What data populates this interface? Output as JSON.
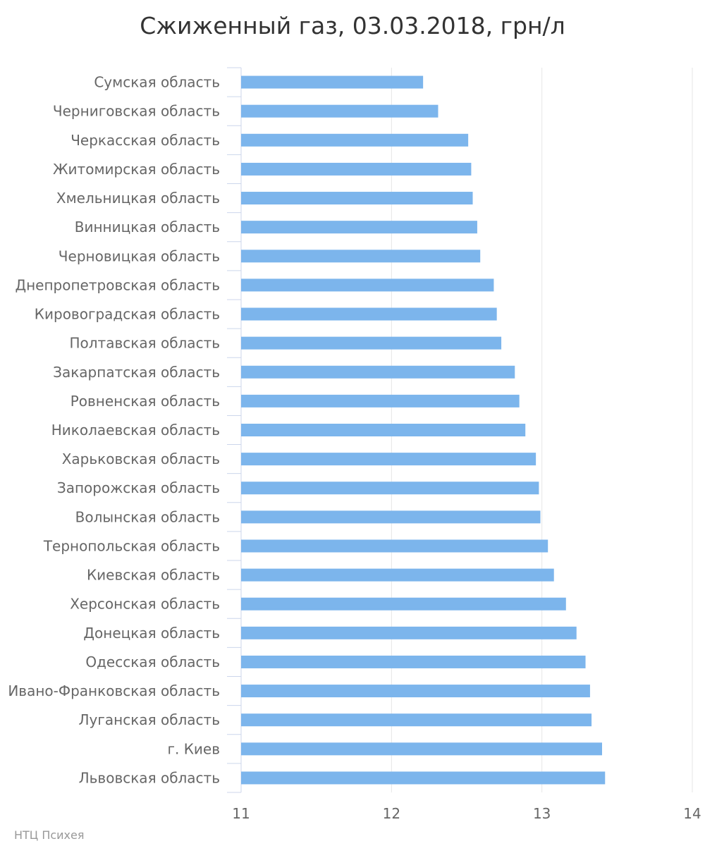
{
  "chart_data": {
    "type": "bar",
    "orientation": "horizontal",
    "title": "Сжиженный газ, 03.03.2018, грн/л",
    "xlabel": "",
    "ylabel": "",
    "categories": [
      "Сумская область",
      "Черниговская область",
      "Черкасская область",
      "Житомирская область",
      "Хмельницкая область",
      "Винницкая область",
      "Черновицкая область",
      "Днепропетровская область",
      "Кировоградская область",
      "Полтавская область",
      "Закарпатская область",
      "Ровненская область",
      "Николаевская область",
      "Харьковская область",
      "Запорожская область",
      "Волынская область",
      "Тернопольская область",
      "Киевская область",
      "Херсонская область",
      "Донецкая область",
      "Одесская область",
      "Ивано-Франковская область",
      "Луганская область",
      "г. Киев",
      "Львовская область"
    ],
    "values": [
      12.21,
      12.31,
      12.51,
      12.53,
      12.54,
      12.57,
      12.59,
      12.68,
      12.7,
      12.73,
      12.82,
      12.85,
      12.89,
      12.96,
      12.98,
      12.99,
      13.04,
      13.08,
      13.16,
      13.23,
      13.29,
      13.32,
      13.33,
      13.4,
      13.42
    ],
    "xlim": [
      11,
      14
    ],
    "xticks": [
      "11",
      "12",
      "13",
      "14"
    ],
    "grid": true,
    "legend": "none",
    "bar_color": "#7cb5ec",
    "grid_color": "#e6e6e6",
    "axis_color": "#ccd6eb"
  },
  "credit": "НТЦ Психея"
}
